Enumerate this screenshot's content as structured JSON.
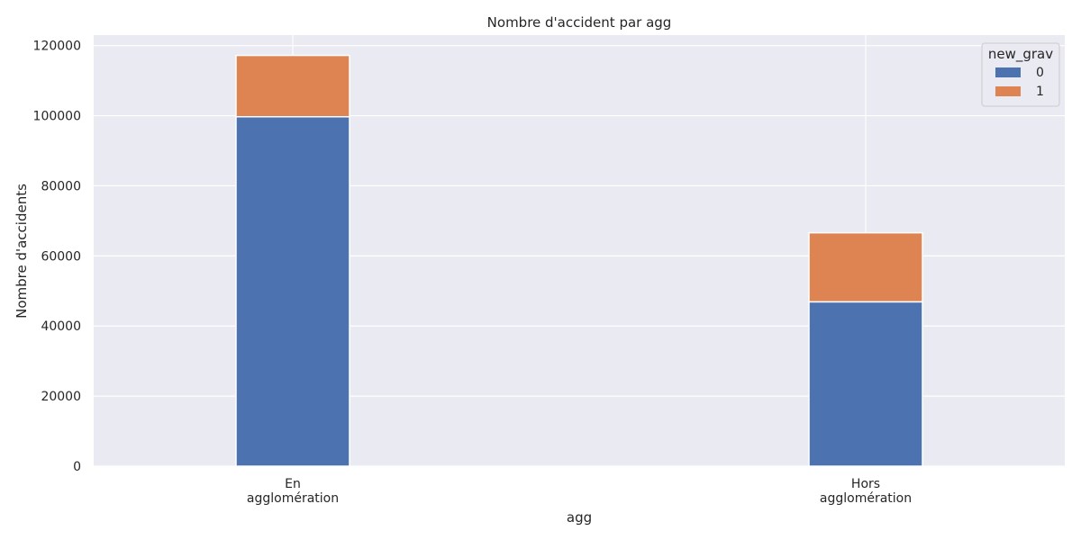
{
  "chart_data": {
    "type": "bar",
    "stacked": true,
    "title": "Nombre d'accident par agg",
    "xlabel": "agg",
    "ylabel": "Nombre d'accidents",
    "categories": [
      [
        "En",
        "agglomération"
      ],
      [
        "Hors",
        "agglomération"
      ]
    ],
    "series": [
      {
        "name": "0",
        "values": [
          99700,
          46900
        ],
        "color": "#4c72b0"
      },
      {
        "name": "1",
        "values": [
          17500,
          19700
        ],
        "color": "#dd8452"
      }
    ],
    "ylim": [
      0,
      123000
    ],
    "yticks": [
      0,
      20000,
      40000,
      60000,
      80000,
      100000,
      120000
    ],
    "legend": {
      "title": "new_grav",
      "placement": "top-right"
    },
    "grid": true,
    "background_color": "#eaeaf2",
    "grid_color": "#ffffff"
  }
}
